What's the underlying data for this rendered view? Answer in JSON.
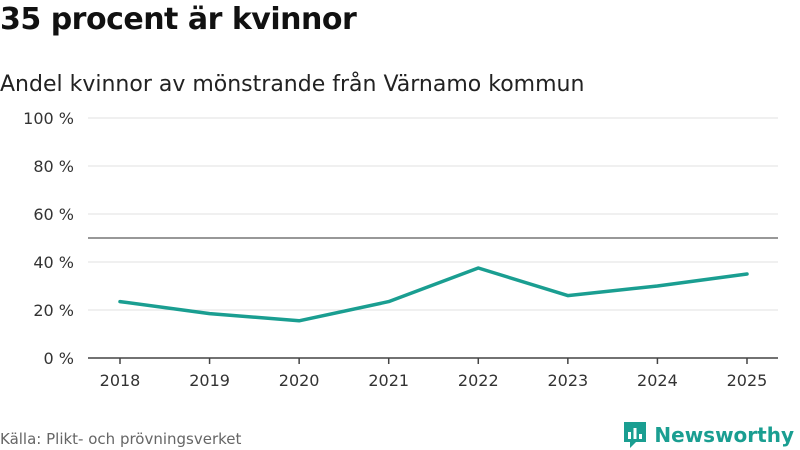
{
  "title": "35 procent är kvinnor",
  "subtitle": "Andel kvinnor av mönstrande från Värnamo kommun",
  "source": "Källa: Plikt- och prövningsverket",
  "brand": {
    "name": "Newsworthy",
    "icon": "newsworthy-logo-icon",
    "color": "#1a9e91"
  },
  "chart_data": {
    "type": "line",
    "x": [
      "2018",
      "2019",
      "2020",
      "2021",
      "2022",
      "2023",
      "2024",
      "2025"
    ],
    "series": [
      {
        "values": [
          23.5,
          18.5,
          15.5,
          23.5,
          37.5,
          26,
          30,
          35
        ],
        "color": "#1a9e91"
      }
    ],
    "yticks": [
      "0 %",
      "20 %",
      "40 %",
      "60 %",
      "80 %",
      "100 %"
    ],
    "ylim": [
      0,
      100
    ],
    "reference_line": 50,
    "grid": true
  }
}
